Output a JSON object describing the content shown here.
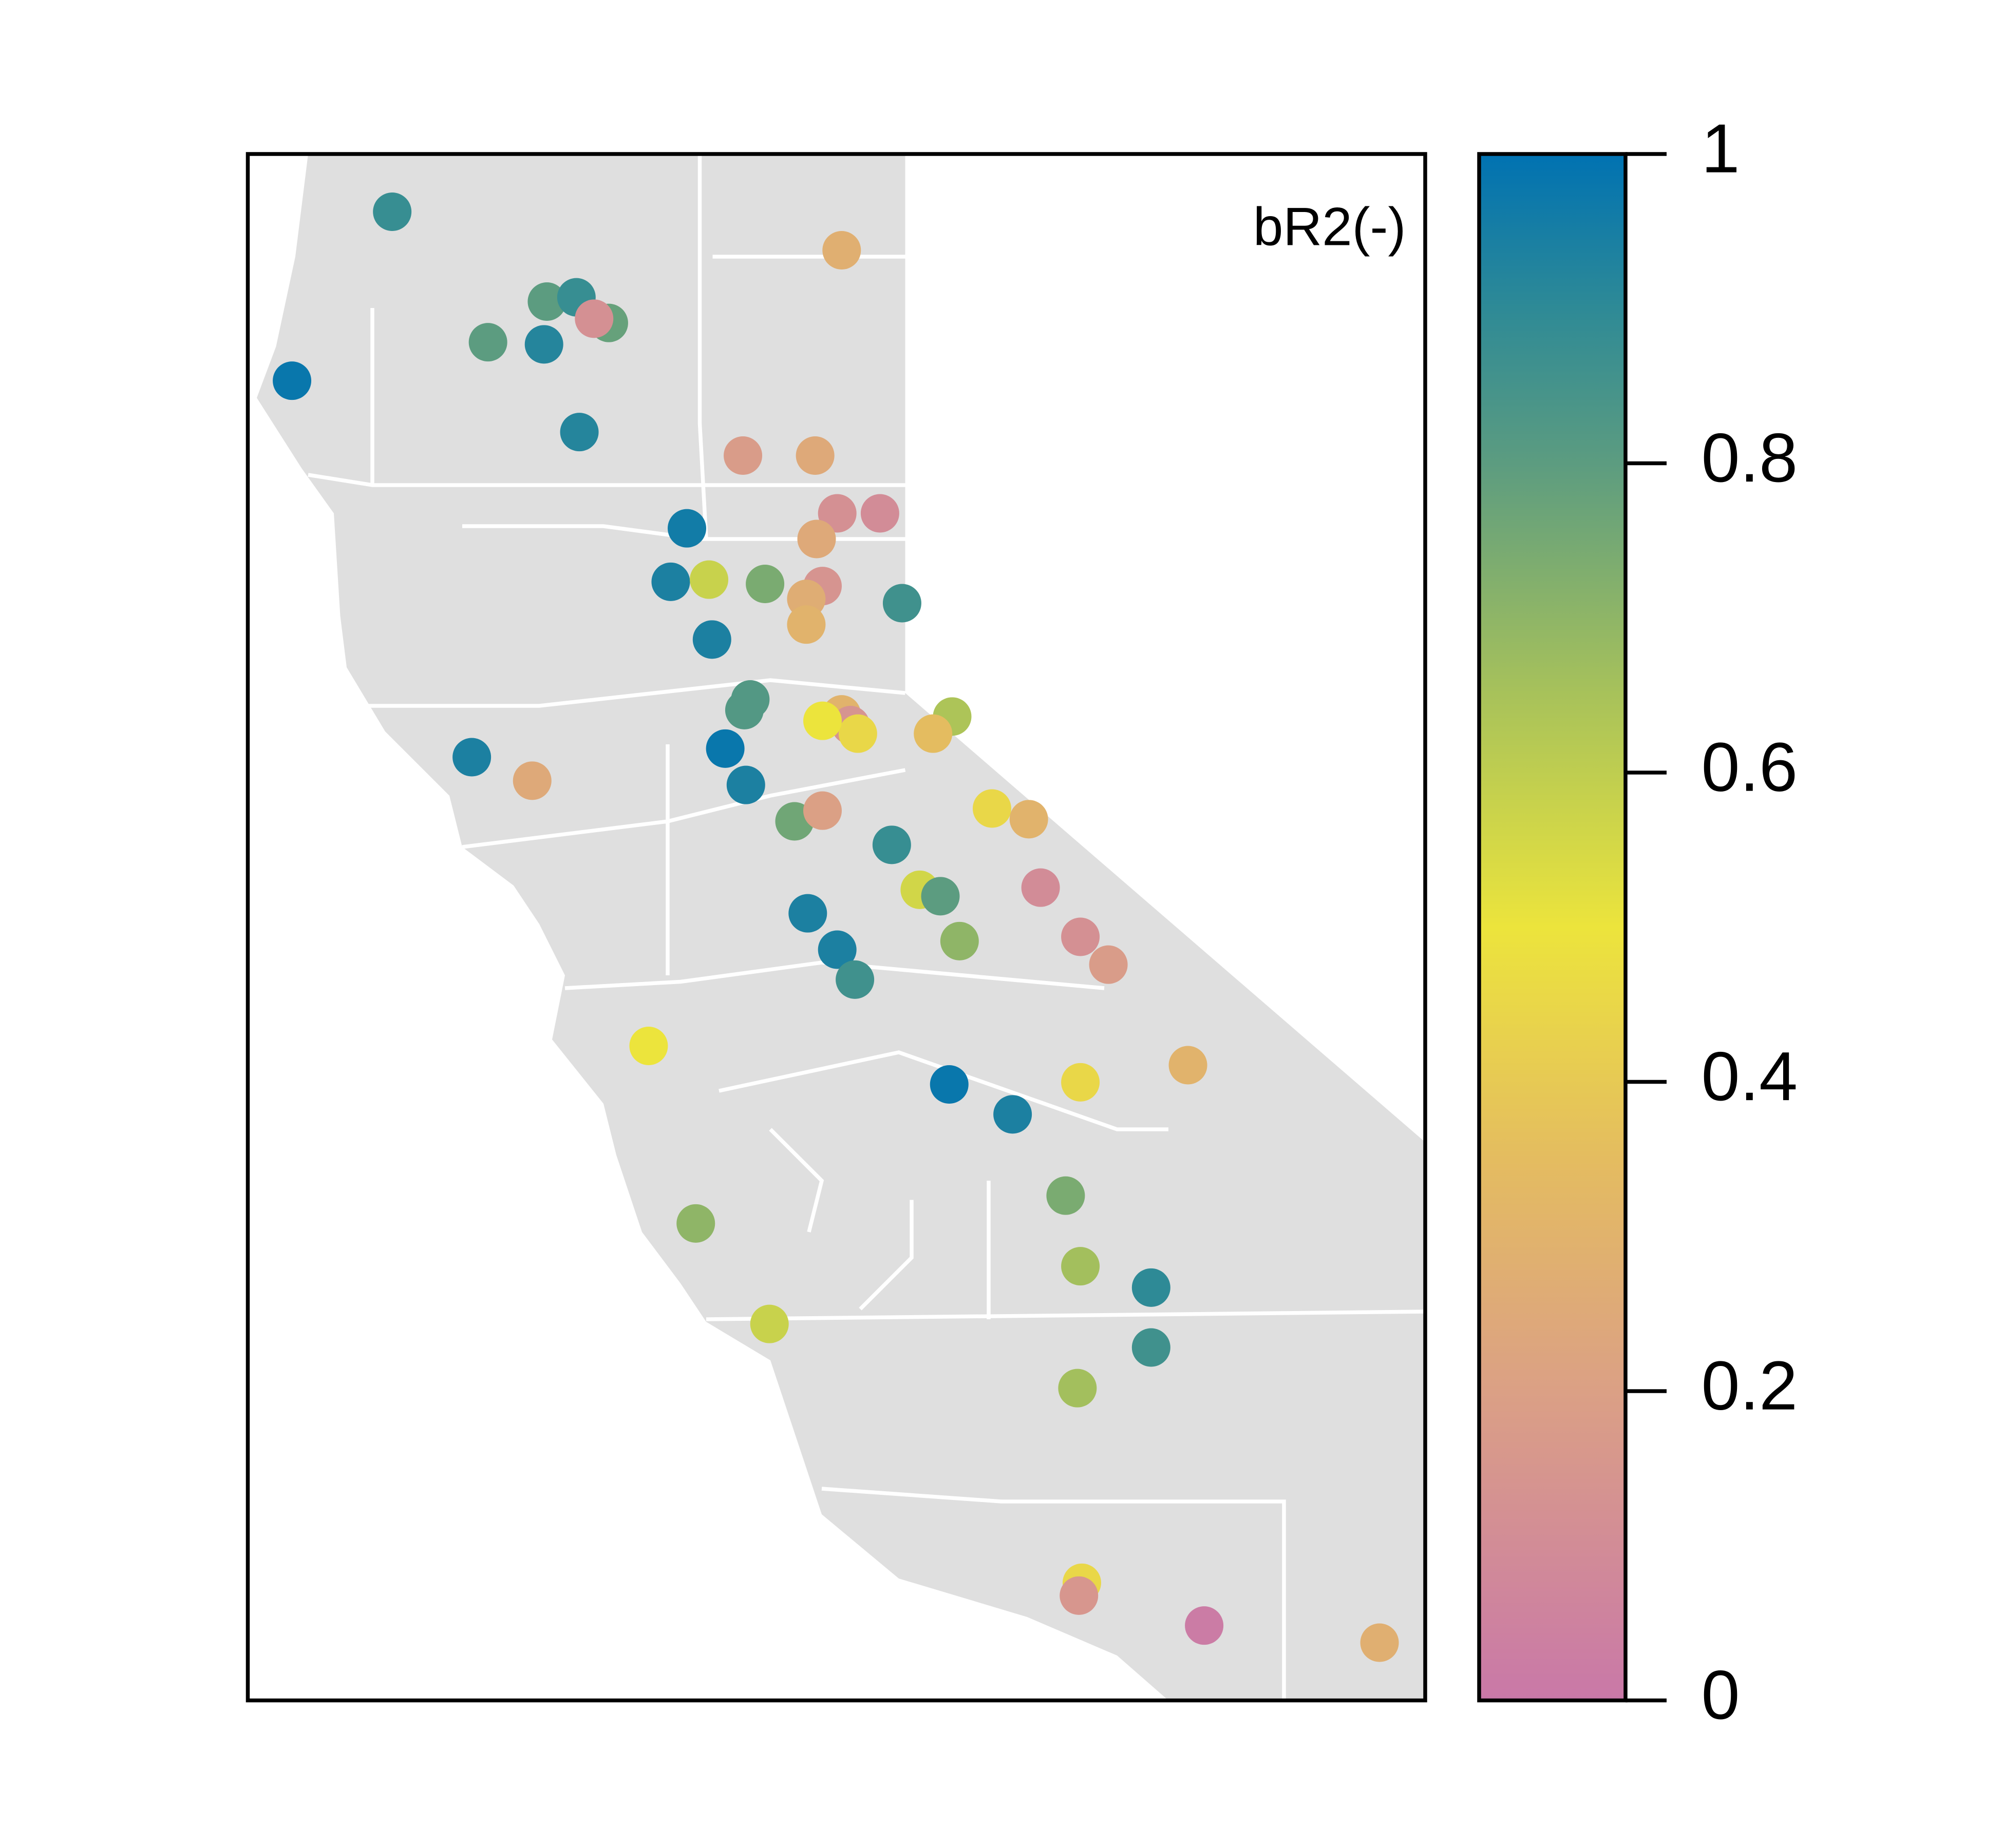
{
  "chart_data": {
    "type": "scatter",
    "title": "bR2(-)",
    "xlim": [
      -124.46,
      -116.47
    ],
    "ylim": [
      34.29,
      41.52
    ],
    "x": [
      -123.48,
      -120.43,
      -122.43,
      -122.23,
      -122.01,
      -122.11,
      -122.83,
      -122.45,
      -124.16,
      -122.21,
      -121.1,
      -120.61,
      -120.46,
      -120.17,
      -120.6,
      -121.48,
      -121.59,
      -121.33,
      -120.95,
      -120.56,
      -120.67,
      -120.67,
      -120.02,
      -121.31,
      -121.05,
      -121.09,
      -120.43,
      -120.37,
      -120.32,
      -120.56,
      -119.68,
      -119.81,
      -122.94,
      -122.53,
      -121.22,
      -121.08,
      -120.75,
      -120.56,
      -119.41,
      -119.16,
      -120.09,
      -119.9,
      -119.76,
      -119.08,
      -120.66,
      -118.81,
      -118.62,
      -119.63,
      -120.46,
      -120.34,
      -121.74,
      -119.7,
      -118.81,
      -118.08,
      -119.27,
      -118.91,
      -121.42,
      -118.81,
      -118.33,
      -120.92,
      -118.33,
      -118.83,
      -118.8,
      -118.82,
      -117.97,
      -116.78
    ],
    "y": [
      41.25,
      41.07,
      40.83,
      40.85,
      40.73,
      40.75,
      40.64,
      40.63,
      40.46,
      40.22,
      40.11,
      40.11,
      39.84,
      39.84,
      39.72,
      39.77,
      39.52,
      39.53,
      39.51,
      39.5,
      39.44,
      39.32,
      39.42,
      39.25,
      38.97,
      38.92,
      38.9,
      38.85,
      38.81,
      38.87,
      38.89,
      38.81,
      38.7,
      38.59,
      38.74,
      38.57,
      38.4,
      38.45,
      38.46,
      38.41,
      38.29,
      38.08,
      38.05,
      38.09,
      37.97,
      37.86,
      37.73,
      37.84,
      37.8,
      37.66,
      37.35,
      37.17,
      37.18,
      37.26,
      37.03,
      36.65,
      36.52,
      36.32,
      36.22,
      36.05,
      35.94,
      35.75,
      34.84,
      34.78,
      34.64,
      34.56
    ],
    "values": [
      0.88,
      0.28,
      0.8,
      0.88,
      0.78,
      0.12,
      0.8,
      0.92,
      0.98,
      0.92,
      0.18,
      0.25,
      0.12,
      0.1,
      0.25,
      0.96,
      0.94,
      0.58,
      0.74,
      0.14,
      0.27,
      0.3,
      0.86,
      0.94,
      0.82,
      0.82,
      0.3,
      0.14,
      0.45,
      0.5,
      0.64,
      0.35,
      0.94,
      0.25,
      0.98,
      0.94,
      0.76,
      0.2,
      0.45,
      0.3,
      0.88,
      0.56,
      0.8,
      0.1,
      0.94,
      0.12,
      0.18,
      0.7,
      0.94,
      0.86,
      0.5,
      0.98,
      0.45,
      0.3,
      0.94,
      0.74,
      0.7,
      0.66,
      0.9,
      0.58,
      0.86,
      0.66,
      0.45,
      0.15,
      0.02,
      0.28
    ],
    "colorbar": {
      "lim": [
        0,
        1
      ],
      "ticks": [
        0,
        0.2,
        0.4,
        0.6,
        0.8,
        1
      ],
      "colormap": [
        {
          "value": 0,
          "color": "#c978a8"
        },
        {
          "value": 0.2,
          "color": "#dba085"
        },
        {
          "value": 0.35,
          "color": "#e4bc60"
        },
        {
          "value": 0.5,
          "color": "#ece43c"
        },
        {
          "value": 0.65,
          "color": "#a8c25a"
        },
        {
          "value": 0.8,
          "color": "#5c9c80"
        },
        {
          "value": 0.9,
          "color": "#2e8a96"
        },
        {
          "value": 1,
          "color": "#0072b2"
        }
      ]
    }
  }
}
